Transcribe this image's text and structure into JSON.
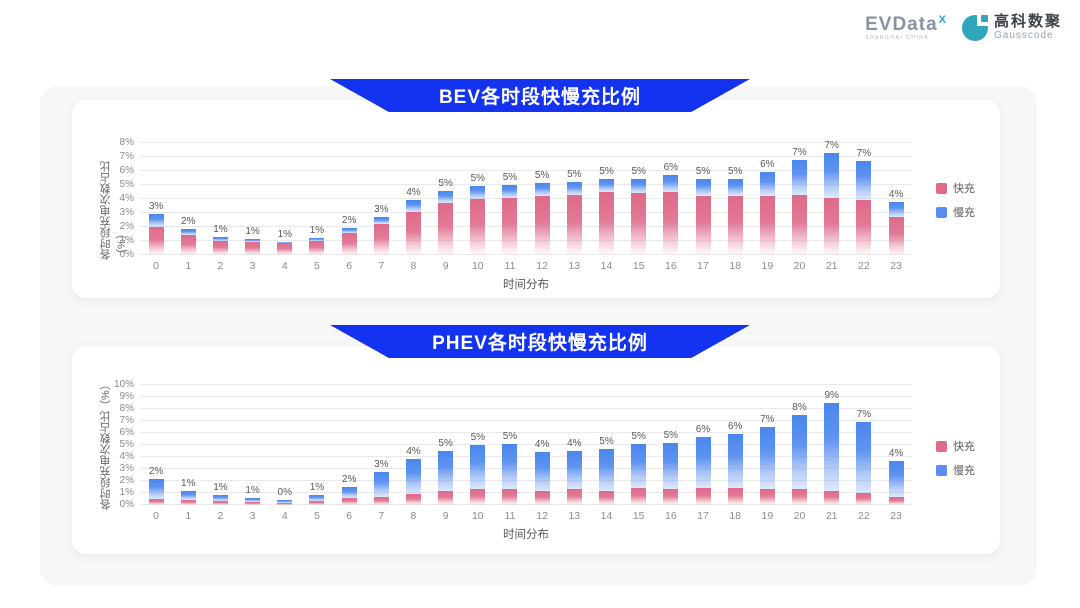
{
  "header": {
    "evdata_logo": {
      "text": "EVData",
      "sup": "X",
      "subtext": "SHANGHAI CHINA"
    },
    "gausscode_logo": {
      "cn": "高科数聚",
      "en": "Gausscode"
    }
  },
  "colors": {
    "fast": "#E06A8B",
    "slow": "#4C88EF",
    "banner_blue": "#1433F0",
    "logo_teal": "#2EA7BB"
  },
  "legend": {
    "fast": "快充",
    "slow": "慢充"
  },
  "chart_data": [
    {
      "type": "bar",
      "stacked": true,
      "title": "BEV各时段快慢充比例",
      "xlabel": "时间分布",
      "ylabel": "各时段充电次数占比（%）",
      "ylim": [
        0,
        8
      ],
      "ytick_step": 1,
      "ytick_format": "percent",
      "grid": true,
      "legend_position": "right",
      "categories": [
        0,
        1,
        2,
        3,
        4,
        5,
        6,
        7,
        8,
        9,
        10,
        11,
        12,
        13,
        14,
        15,
        16,
        17,
        18,
        19,
        20,
        21,
        22,
        23
      ],
      "series": [
        {
          "name": "快充",
          "color": "#E06A8B",
          "values": [
            2.0,
            1.4,
            1.0,
            0.9,
            0.85,
            1.0,
            1.55,
            2.2,
            3.1,
            3.7,
            4.0,
            4.1,
            4.2,
            4.3,
            4.5,
            4.4,
            4.5,
            4.2,
            4.2,
            4.2,
            4.3,
            4.1,
            3.9,
            2.7
          ]
        },
        {
          "name": "慢充",
          "color": "#4C88EF",
          "values": [
            0.95,
            0.45,
            0.3,
            0.25,
            0.1,
            0.2,
            0.35,
            0.5,
            0.8,
            0.85,
            0.9,
            0.9,
            0.95,
            0.95,
            0.9,
            1.0,
            1.2,
            1.25,
            1.25,
            1.75,
            2.5,
            3.2,
            2.85,
            1.1
          ]
        }
      ],
      "total_labels": [
        "3%",
        "2%",
        "1%",
        "1%",
        "1%",
        "1%",
        "2%",
        "3%",
        "4%",
        "5%",
        "5%",
        "5%",
        "5%",
        "5%",
        "5%",
        "5%",
        "6%",
        "5%",
        "5%",
        "6%",
        "7%",
        "7%",
        "7%",
        "4%"
      ]
    },
    {
      "type": "bar",
      "stacked": true,
      "title": "PHEV各时段快慢充比例",
      "xlabel": "时间分布",
      "ylabel": "各时段充电次数占比（%）",
      "ylim": [
        0,
        10
      ],
      "ytick_step": 1,
      "ytick_format": "percent",
      "grid": true,
      "legend_position": "right",
      "categories": [
        0,
        1,
        2,
        3,
        4,
        5,
        6,
        7,
        8,
        9,
        10,
        11,
        12,
        13,
        14,
        15,
        16,
        17,
        18,
        19,
        20,
        21,
        22,
        23
      ],
      "series": [
        {
          "name": "快充",
          "color": "#E06A8B",
          "values": [
            0.5,
            0.4,
            0.3,
            0.25,
            0.2,
            0.3,
            0.55,
            0.7,
            0.9,
            1.2,
            1.3,
            1.3,
            1.2,
            1.3,
            1.2,
            1.4,
            1.3,
            1.4,
            1.4,
            1.35,
            1.3,
            1.2,
            1.0,
            0.7
          ]
        },
        {
          "name": "慢充",
          "color": "#4C88EF",
          "values": [
            1.7,
            0.8,
            0.5,
            0.35,
            0.25,
            0.55,
            0.95,
            2.05,
            2.9,
            3.3,
            3.7,
            3.8,
            3.2,
            3.2,
            3.5,
            3.7,
            3.9,
            4.3,
            4.5,
            5.15,
            6.2,
            7.3,
            5.9,
            3.0
          ]
        }
      ],
      "total_labels": [
        "2%",
        "1%",
        "1%",
        "1%",
        "0%",
        "1%",
        "2%",
        "3%",
        "4%",
        "5%",
        "5%",
        "5%",
        "4%",
        "4%",
        "5%",
        "5%",
        "5%",
        "6%",
        "6%",
        "7%",
        "8%",
        "9%",
        "7%",
        "4%"
      ]
    }
  ]
}
